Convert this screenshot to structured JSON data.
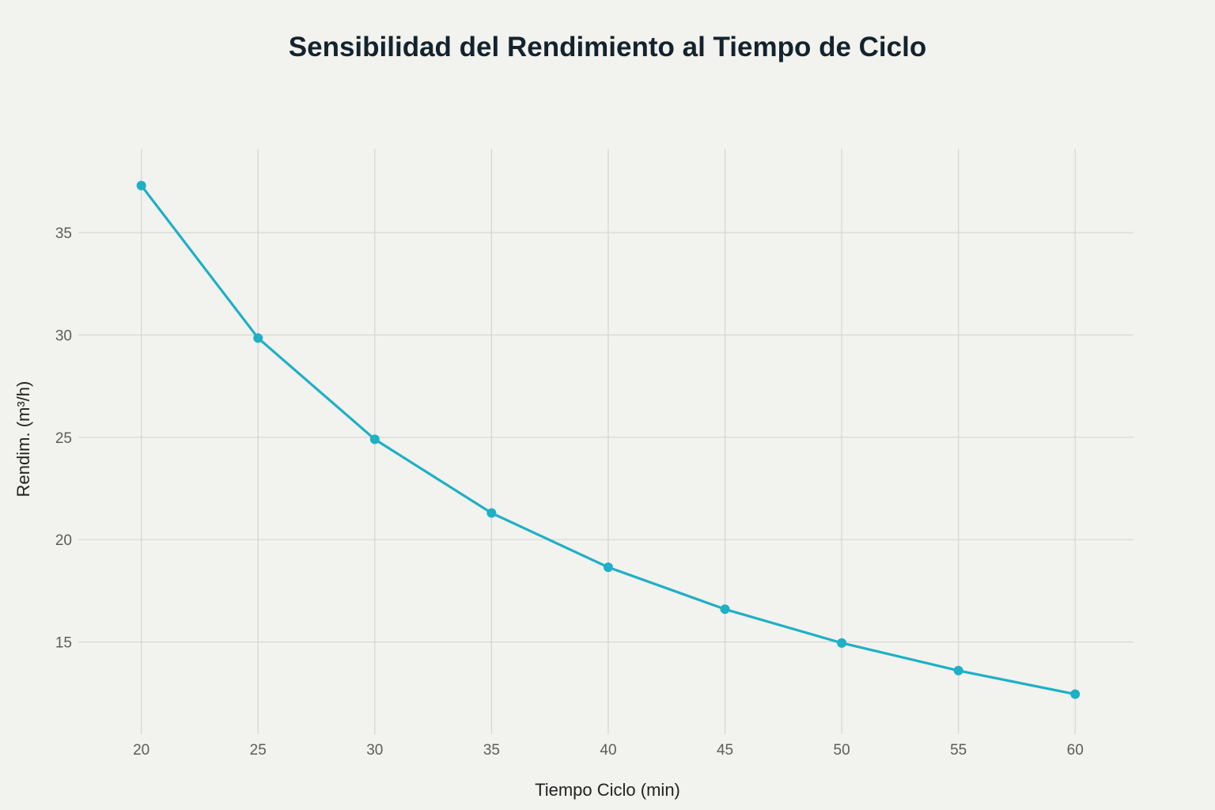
{
  "chart_data": {
    "type": "line",
    "title": "Sensibilidad del Rendimiento al Tiempo de Ciclo",
    "xlabel": "Tiempo Ciclo (min)",
    "ylabel": "Rendim. (m³/h)",
    "x": [
      20,
      25,
      30,
      35,
      40,
      45,
      50,
      55,
      60
    ],
    "series": [
      {
        "values": [
          37.3,
          29.85,
          24.9,
          21.3,
          18.65,
          16.6,
          14.95,
          13.6,
          12.45
        ]
      }
    ],
    "xlim": [
      17.3,
      62.5
    ],
    "ylim": [
      10.5,
      39.1
    ],
    "xticks": [
      20,
      25,
      30,
      35,
      40,
      45,
      50,
      55,
      60
    ],
    "yticks": [
      15,
      20,
      25,
      30,
      35
    ],
    "grid": true,
    "legend": "none",
    "colors": {
      "line": "#1eb0c6",
      "grid": "#d4d4d0",
      "background": "#f2f2ee"
    }
  }
}
